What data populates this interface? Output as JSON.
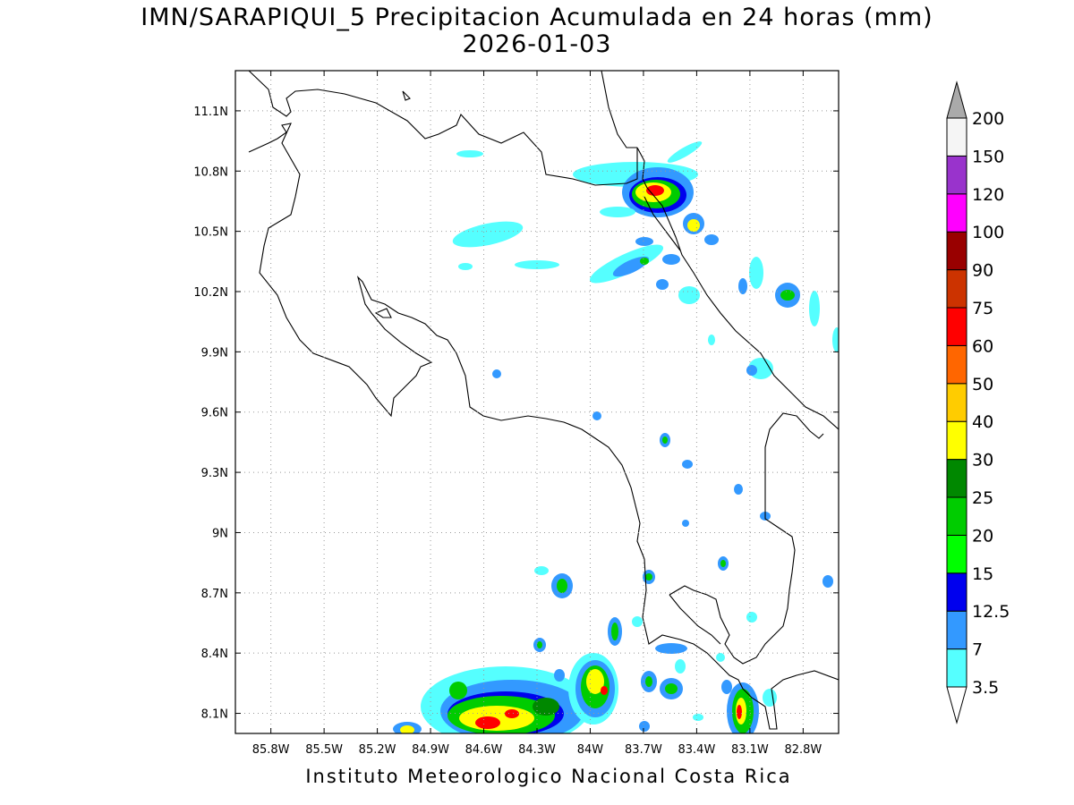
{
  "title": "IMN/SARAPIQUI_5 Precipitacion Acumulada en 24 horas (mm)",
  "date": "2026-01-03",
  "footer": "Instituto Meteorologico Nacional Costa Rica",
  "map": {
    "lon_range": [
      -86.0,
      -82.6
    ],
    "lat_range": [
      8.0,
      11.3
    ],
    "lon_ticks": [
      "85.8W",
      "85.5W",
      "85.2W",
      "84.9W",
      "84.6W",
      "84.3W",
      "84W",
      "83.7W",
      "83.4W",
      "83.1W",
      "82.8W"
    ],
    "lon_tick_values": [
      -85.8,
      -85.5,
      -85.2,
      -84.9,
      -84.6,
      -84.3,
      -84.0,
      -83.7,
      -83.4,
      -83.1,
      -82.8
    ],
    "lat_ticks": [
      "8.1N",
      "8.4N",
      "8.7N",
      "9N",
      "9.3N",
      "9.6N",
      "9.9N",
      "10.2N",
      "10.5N",
      "10.8N",
      "11.1N"
    ],
    "lat_tick_values": [
      8.1,
      8.4,
      8.7,
      9.0,
      9.3,
      9.6,
      9.9,
      10.2,
      10.5,
      10.8,
      11.1
    ],
    "grid": "dotted"
  },
  "colorbar": {
    "labels": [
      "3.5",
      "7",
      "12.5",
      "15",
      "20",
      "25",
      "30",
      "40",
      "50",
      "60",
      "75",
      "90",
      "100",
      "120",
      "150",
      "200"
    ],
    "colors": [
      "#ffffff",
      "#55ffff",
      "#3399ff",
      "#0000ee",
      "#00ff00",
      "#00cc00",
      "#008800",
      "#ffff00",
      "#ffcc00",
      "#ff6600",
      "#ff0000",
      "#cc3300",
      "#990000",
      "#ff00ff",
      "#9933cc",
      "#f5f5f5",
      "#aaaaaa"
    ]
  }
}
